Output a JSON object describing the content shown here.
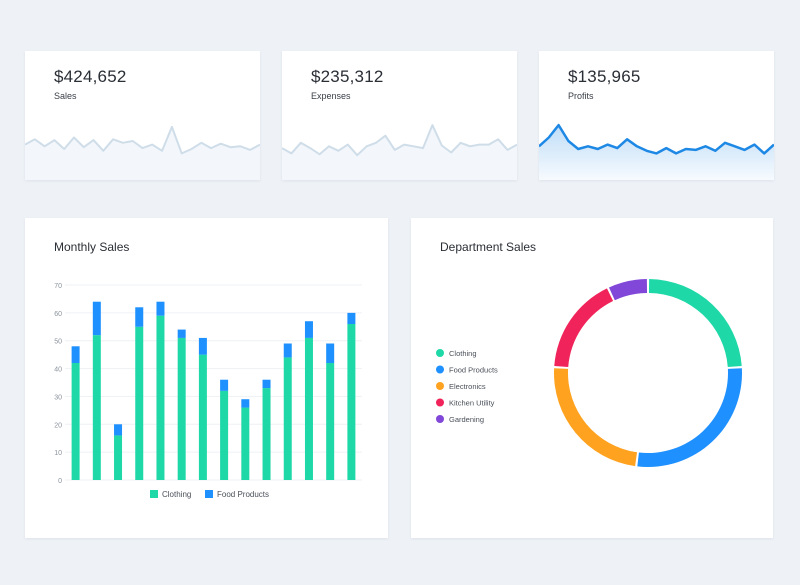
{
  "kpis": [
    {
      "value": "$424,652",
      "label": "Sales",
      "active": false,
      "spark": [
        40,
        46,
        38,
        45,
        35,
        48,
        37,
        45,
        33,
        46,
        42,
        44,
        36,
        40,
        33,
        60,
        30,
        35,
        42,
        36,
        41,
        37,
        38,
        34,
        40
      ]
    },
    {
      "value": "$235,312",
      "label": "Expenses",
      "active": false,
      "spark": [
        36,
        30,
        42,
        36,
        29,
        38,
        33,
        40,
        28,
        38,
        42,
        50,
        34,
        40,
        38,
        36,
        62,
        39,
        31,
        42,
        38,
        40,
        40,
        46,
        34,
        40
      ]
    },
    {
      "value": "$135,965",
      "label": "Profits",
      "active": true,
      "spark": [
        38,
        48,
        62,
        44,
        35,
        38,
        35,
        40,
        36,
        46,
        38,
        33,
        30,
        36,
        30,
        35,
        34,
        38,
        33,
        42,
        38,
        34,
        40,
        30,
        40
      ]
    }
  ],
  "colors": {
    "teal": "#1fd8a8",
    "blue": "#1e90ff",
    "orange": "#ffa21f",
    "red": "#f0245a",
    "purple": "#8147d8",
    "spark_muted": "#cfdde9",
    "spark_active": "#1e88e5"
  },
  "monthly": {
    "title": "Monthly Sales"
  },
  "department": {
    "title": "Department Sales"
  },
  "chart_data": [
    {
      "type": "bar",
      "title": "Monthly Sales",
      "stacked": true,
      "ylim": [
        0,
        70
      ],
      "yticks": [
        0,
        10,
        20,
        30,
        40,
        50,
        60,
        70
      ],
      "grid": true,
      "legend": "bottom",
      "series": [
        {
          "name": "Clothing",
          "color": "#1fd8a8",
          "values": [
            42,
            52,
            16,
            55,
            59,
            51,
            45,
            32,
            26,
            33,
            44,
            51,
            42,
            56
          ]
        },
        {
          "name": "Food Products",
          "color": "#1e90ff",
          "values": [
            6,
            12,
            4,
            7,
            5,
            3,
            6,
            4,
            3,
            3,
            5,
            6,
            7,
            4
          ]
        }
      ]
    },
    {
      "type": "pie",
      "title": "Department Sales",
      "donut": true,
      "legend": "left",
      "slices": [
        {
          "label": "Clothing",
          "value": 24,
          "color": "#1fd8a8"
        },
        {
          "label": "Food Products",
          "value": 28,
          "color": "#1e90ff"
        },
        {
          "label": "Electronics",
          "value": 24,
          "color": "#ffa21f"
        },
        {
          "label": "Kitchen Utility",
          "value": 17,
          "color": "#f0245a"
        },
        {
          "label": "Gardening",
          "value": 7,
          "color": "#8147d8"
        }
      ]
    }
  ]
}
